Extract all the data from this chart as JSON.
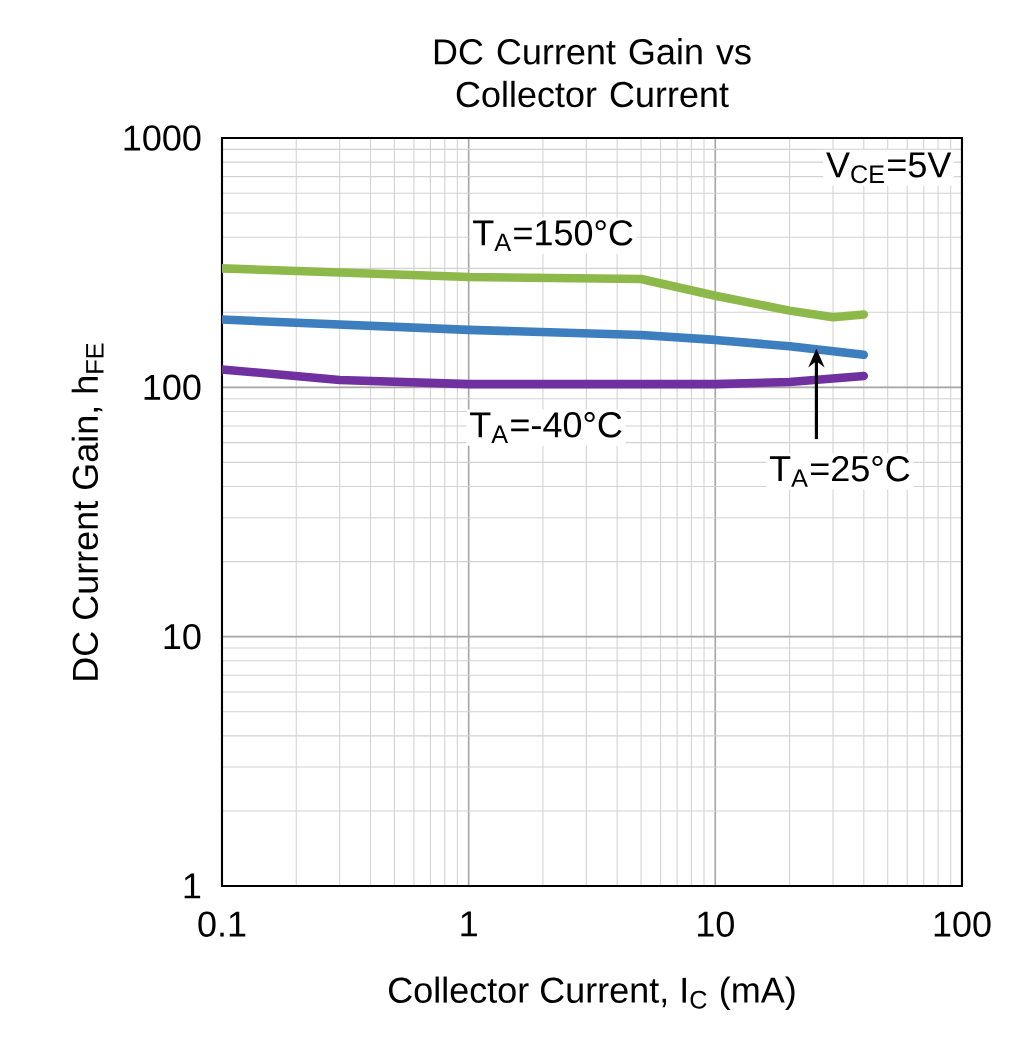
{
  "chart_data": {
    "type": "line",
    "title": "DC Current Gain vs Collector Current",
    "xlabel": "Collector Current, I$_{C}$ (mA)",
    "ylabel": "DC Current Gain, h$_{FE}$",
    "log": "xy",
    "grid": true,
    "legend": false,
    "marker": "none",
    "line_style": "solid",
    "xlim": [
      0.1,
      100
    ],
    "ylim": [
      1,
      1000
    ],
    "xticks": [
      0.1,
      1,
      10,
      100
    ],
    "yticks": [
      1,
      10,
      100,
      1000
    ],
    "annotations": [
      "V$_{CE}$=5V"
    ],
    "series": [
      {
        "name": "T$_{A}$=150°C",
        "color": "#8db84a",
        "x": [
          0.1,
          1,
          5,
          10,
          20,
          30,
          40
        ],
        "values": [
          300,
          277,
          272,
          233,
          203,
          191,
          196
        ]
      },
      {
        "name": "T$_{A}$=25°C",
        "color": "#3d7ebf",
        "x": [
          0.1,
          1,
          5,
          10,
          20,
          40
        ],
        "values": [
          187,
          170,
          162,
          155,
          146,
          135
        ]
      },
      {
        "name": "T$_{A}$=-40°C",
        "color": "#7030a0",
        "x": [
          0.1,
          0.3,
          1,
          10,
          20,
          40
        ],
        "values": [
          118,
          107,
          103,
          103,
          105,
          111
        ]
      }
    ]
  }
}
